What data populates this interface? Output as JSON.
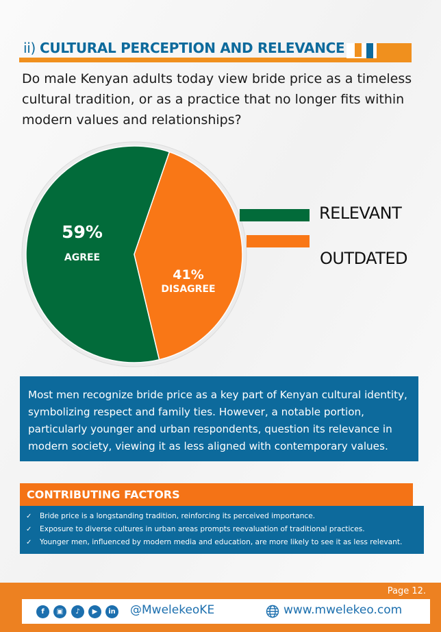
{
  "section": {
    "number": "ii)",
    "title": "CULTURAL PERCEPTION AND RELEVANCE"
  },
  "question": "Do male Kenyan adults today view bride price as a timeless cultural tradition, or as a practice that no longer fits within modern values and relationships?",
  "chart_data": {
    "type": "pie",
    "slices": [
      {
        "label": "AGREE",
        "value": 59,
        "value_label": "59%",
        "color": "#026b3a",
        "legend": "RELEVANT"
      },
      {
        "label": "DISAGREE",
        "value": 41,
        "value_label": "41%",
        "color": "#f97716",
        "legend": "OUTDATED"
      }
    ],
    "legend_placement": "right"
  },
  "summary": "Most men recognize bride price as a key part of Kenyan cultural identity, symbolizing respect and family ties. However, a notable portion, particularly younger and urban respondents, question its relevance in modern society, viewing it as less aligned with contemporary values.",
  "factors": {
    "title": "CONTRIBUTING FACTORS",
    "items": [
      "Bride price is a longstanding tradition, reinforcing its perceived importance.",
      "Exposure to diverse cultures in urban areas prompts reevaluation of traditional practices.",
      "Younger men, influenced by modern media and education, are more likely to see it as less relevant."
    ]
  },
  "footer": {
    "page": "Page 12.",
    "social_icons": [
      "facebook-icon",
      "instagram-icon",
      "tiktok-icon",
      "youtube-icon",
      "linkedin-icon"
    ],
    "handle": "@MwelekeoKE",
    "website": "www.mwelekeo.com"
  }
}
